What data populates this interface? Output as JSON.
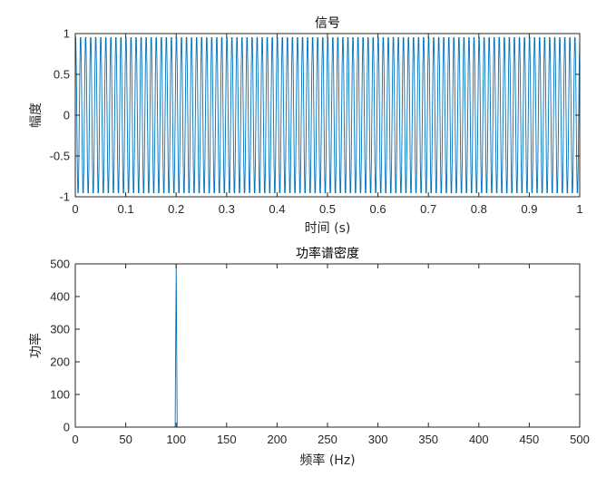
{
  "colors": {
    "line": "#0072BD",
    "axis": "#262626",
    "background": "#ffffff"
  },
  "chart_data": [
    {
      "type": "line",
      "title": "信号",
      "xlabel": "时间 (s)",
      "ylabel": "幅度",
      "xlim": [
        0,
        1
      ],
      "ylim": [
        -1,
        1
      ],
      "x_ticks": [
        "0",
        "0.1",
        "0.2",
        "0.3",
        "0.4",
        "0.5",
        "0.6",
        "0.7",
        "0.8",
        "0.9",
        "1"
      ],
      "y_ticks": [
        "-1",
        "-0.5",
        "0",
        "0.5",
        "1"
      ],
      "grid": false,
      "series": [
        {
          "function": "sin",
          "frequency_hz": 100,
          "amplitude": 1,
          "sample_rate_hz": 1000,
          "duration_s": 1
        }
      ]
    },
    {
      "type": "line",
      "title": "功率谱密度",
      "xlabel": "频率 (Hz)",
      "ylabel": "功率",
      "xlim": [
        0,
        500
      ],
      "ylim": [
        0,
        500
      ],
      "x_ticks": [
        "0",
        "50",
        "100",
        "150",
        "200",
        "250",
        "300",
        "350",
        "400",
        "450",
        "500"
      ],
      "y_ticks": [
        "0",
        "100",
        "200",
        "300",
        "400",
        "500"
      ],
      "grid": false,
      "series": [
        {
          "x": [
            0,
            99,
            100,
            101,
            500
          ],
          "y": [
            0,
            0,
            500,
            0,
            0
          ]
        }
      ]
    }
  ]
}
